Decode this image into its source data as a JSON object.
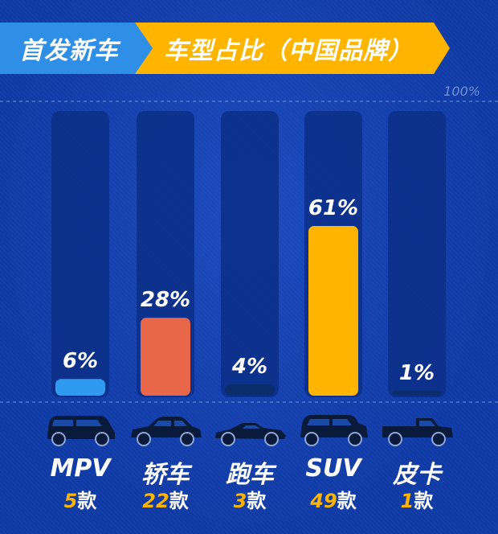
{
  "header": {
    "left_tag": "首发新车",
    "right_tag": "车型占比（中国品牌）"
  },
  "axis": {
    "max_label": "100%"
  },
  "colors": {
    "accent_blue": "#2f8fe6",
    "accent_yellow": "#ffb400"
  },
  "chart_data": {
    "type": "bar",
    "title": "车型占比（中国品牌）",
    "categories": [
      "MPV",
      "轿车",
      "跑车",
      "SUV",
      "皮卡"
    ],
    "values": [
      6,
      28,
      4,
      61,
      1
    ],
    "value_labels": [
      "6%",
      "28%",
      "4%",
      "61%",
      "1%"
    ],
    "counts": [
      "5",
      "22",
      "3",
      "49",
      "1"
    ],
    "count_unit": "款",
    "colors": [
      "#2f9af0",
      "#e8674a",
      "#0b2d6b",
      "#ffb400",
      "#0b2d6b"
    ],
    "ylim": [
      0,
      100
    ],
    "ylabel": "",
    "xlabel": ""
  }
}
